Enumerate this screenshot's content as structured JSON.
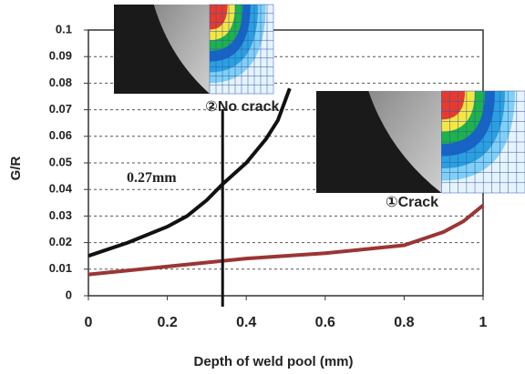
{
  "chart_data": {
    "type": "line",
    "y_label": "G/R",
    "x_label": "Depth of weld pool (mm)",
    "xlim": [
      0,
      1
    ],
    "xticks": [
      0,
      0.2,
      0.4,
      0.6,
      0.8,
      1
    ],
    "ylim": [
      0,
      0.1
    ],
    "yticks": [
      0,
      0.01,
      0.02,
      0.03,
      0.04,
      0.05,
      0.06,
      0.07,
      0.08,
      0.09,
      0.1
    ],
    "grid": true,
    "series": [
      {
        "color": "#111111",
        "x": [
          0,
          0.1,
          0.2,
          0.25,
          0.3,
          0.34,
          0.4,
          0.45,
          0.48,
          0.51
        ],
        "values": [
          0.015,
          0.02,
          0.026,
          0.03,
          0.036,
          0.042,
          0.05,
          0.059,
          0.066,
          0.078
        ]
      },
      {
        "color": "#9b3535",
        "x": [
          0,
          0.2,
          0.4,
          0.6,
          0.8,
          0.9,
          0.95,
          1
        ],
        "values": [
          0.008,
          0.011,
          0.014,
          0.016,
          0.019,
          0.024,
          0.028,
          0.034
        ]
      }
    ],
    "marker_line_x": 0.34,
    "annotations": [
      {
        "text": "0.27mm",
        "x": 0.16,
        "y": 0.044,
        "color": "#111111"
      },
      {
        "text": "②No crack",
        "x": 0.39,
        "y": 0.071,
        "color": "#111111"
      },
      {
        "text": "①Crack",
        "x": 0.82,
        "y": 0.035,
        "color": "#a03838"
      }
    ]
  }
}
